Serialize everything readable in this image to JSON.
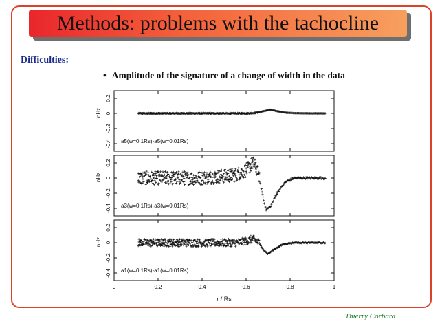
{
  "slide": {
    "title": "Methods: problems with the tachocline",
    "section_heading": "Difficulties:",
    "bullet": "Amplitude of the signature of a change of width in the data",
    "author": "Thierry Corbard"
  },
  "colors": {
    "frame": "#d9432a",
    "banner_left": "#e9262c",
    "banner_right": "#f7a05e",
    "heading": "#1a2a8a",
    "author": "#1b7a2a"
  },
  "chart_data": [
    {
      "type": "scatter",
      "panel": "top",
      "ylabel": "nHz",
      "yticks": [
        "-0.4",
        "-0.2",
        "0",
        "0.2"
      ],
      "ylim": [
        -0.5,
        0.3
      ],
      "annotation": "a5(w=0.1Rs)-a5(w=0.01Rs)",
      "x_start": 0.11,
      "x_end": 0.96,
      "noise_amplitude": 0.006,
      "signal": [
        [
          0.6,
          0
        ],
        [
          0.64,
          0.005
        ],
        [
          0.68,
          0.03
        ],
        [
          0.71,
          0.05
        ],
        [
          0.74,
          0.03
        ],
        [
          0.78,
          0.01
        ],
        [
          0.82,
          0.003
        ],
        [
          0.9,
          0
        ]
      ]
    },
    {
      "type": "scatter",
      "panel": "middle",
      "ylabel": "nHz",
      "yticks": [
        "-0.4",
        "-0.2",
        "0",
        "0.2"
      ],
      "ylim": [
        -0.5,
        0.3
      ],
      "annotation": "a3(w=0.1Rs)-a3(w=0.01Rs)",
      "x_start": 0.11,
      "x_end": 0.96,
      "noise_amplitude": 0.09,
      "signal": [
        [
          0.4,
          0
        ],
        [
          0.55,
          0.04
        ],
        [
          0.6,
          0.1
        ],
        [
          0.63,
          0.2
        ],
        [
          0.65,
          0.12
        ],
        [
          0.67,
          -0.15
        ],
        [
          0.69,
          -0.42
        ],
        [
          0.71,
          -0.38
        ],
        [
          0.74,
          -0.2
        ],
        [
          0.78,
          -0.05
        ],
        [
          0.82,
          0
        ],
        [
          0.96,
          0
        ]
      ]
    },
    {
      "type": "scatter",
      "panel": "bottom",
      "ylabel": "nHz",
      "yticks": [
        "-0.4",
        "-0.2",
        "0",
        "0.2"
      ],
      "ylim": [
        -0.5,
        0.3
      ],
      "annotation": "a1(w=0.1Rs)-a1(w=0.01Rs)",
      "x_start": 0.11,
      "x_end": 0.96,
      "noise_amplitude": 0.05,
      "signal": [
        [
          0.55,
          0
        ],
        [
          0.6,
          0.02
        ],
        [
          0.63,
          0.05
        ],
        [
          0.66,
          0.0
        ],
        [
          0.68,
          -0.1
        ],
        [
          0.7,
          -0.15
        ],
        [
          0.73,
          -0.08
        ],
        [
          0.77,
          -0.02
        ],
        [
          0.82,
          0
        ],
        [
          0.96,
          0
        ]
      ]
    }
  ],
  "x_axis": {
    "label": "r / Rs",
    "ticks": [
      "0",
      "0.2",
      "0.4",
      "0.6",
      "0.8",
      "1"
    ],
    "xlim": [
      0,
      1
    ]
  }
}
